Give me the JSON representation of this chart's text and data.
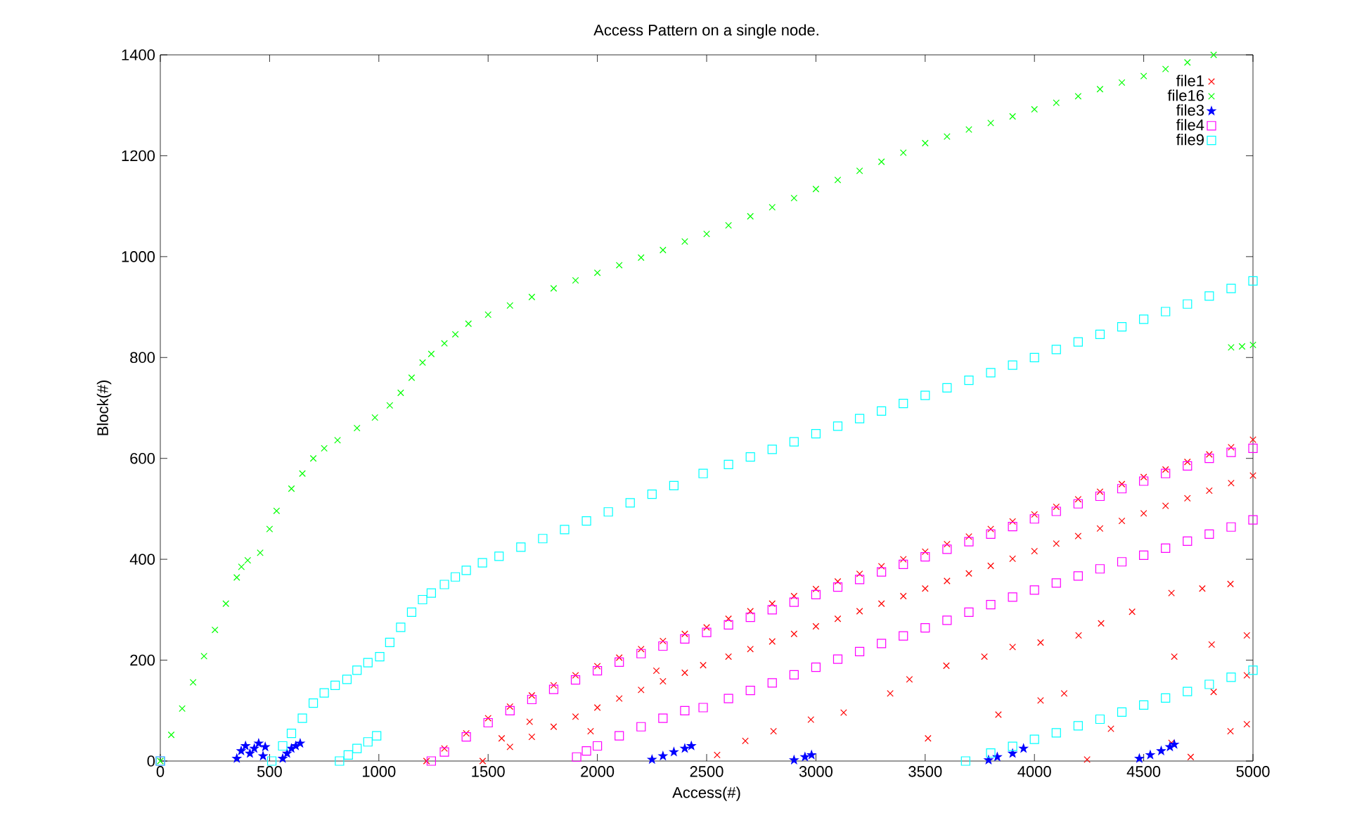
{
  "chart_data": {
    "type": "scatter",
    "title": "Access Pattern on a single node.",
    "xlabel": "Access(#)",
    "ylabel": "Block(#)",
    "xlim": [
      0,
      5000
    ],
    "ylim": [
      0,
      1400
    ],
    "xticks": [
      0,
      500,
      1000,
      1500,
      2000,
      2500,
      3000,
      3500,
      4000,
      4500,
      5000
    ],
    "yticks": [
      0,
      200,
      400,
      600,
      800,
      1000,
      1200,
      1400
    ],
    "grid": false,
    "legend": "top right",
    "series": [
      {
        "name": "file1",
        "color": "#ff0000",
        "marker": "cross",
        "x": [
          1218,
          1300,
          1400,
          1500,
          1600,
          1700,
          1800,
          1900,
          2000,
          2100,
          2200,
          2300,
          2400,
          2500,
          2600,
          2700,
          2800,
          2900,
          3000,
          3100,
          3200,
          3300,
          3400,
          3500,
          3600,
          3700,
          3800,
          3900,
          4000,
          4100,
          4200,
          4300,
          4400,
          4500,
          4600,
          4700,
          4800,
          4900,
          5000,
          1475,
          1600,
          1700,
          1800,
          1900,
          2000,
          2100,
          2200,
          2300,
          2400,
          2484,
          2600,
          2700,
          2800,
          2900,
          3000,
          3100,
          3200,
          3300,
          3400,
          3500,
          3600,
          3700,
          3800,
          3900,
          4000,
          4100,
          4200,
          4300,
          4400,
          4500,
          4600,
          4700,
          4800,
          4900,
          5000,
          4897,
          4768,
          4627,
          4447,
          4305,
          4202,
          4028,
          3900,
          3771,
          3597,
          3428,
          3340,
          3127,
          2977,
          2806,
          2677,
          2548,
          3513,
          3835,
          4028,
          4136,
          4640,
          4811,
          4972,
          4897,
          4972,
          4627,
          4350,
          4241,
          4715,
          4820,
          4972,
          1969,
          1690,
          1562,
          2270
        ],
        "values": [
          0,
          25,
          55,
          85,
          108,
          130,
          150,
          170,
          188,
          205,
          222,
          238,
          252,
          265,
          282,
          297,
          312,
          327,
          341,
          356,
          371,
          386,
          400,
          415,
          430,
          445,
          460,
          475,
          489,
          504,
          519,
          534,
          549,
          563,
          578,
          593,
          608,
          622,
          637,
          0,
          28,
          48,
          68,
          88,
          106,
          124,
          141,
          158,
          175,
          190,
          207,
          222,
          237,
          252,
          267,
          282,
          297,
          312,
          327,
          342,
          357,
          372,
          387,
          401,
          416,
          431,
          446,
          461,
          476,
          491,
          506,
          521,
          536,
          551,
          566,
          351,
          342,
          333,
          296,
          273,
          249,
          235,
          226,
          207,
          189,
          162,
          134,
          96,
          82,
          59,
          40,
          12,
          45,
          92,
          120,
          134,
          207,
          231,
          249,
          59,
          73,
          36,
          64,
          3,
          8,
          137,
          170,
          59,
          78,
          45,
          179
        ]
      },
      {
        "name": "file16",
        "color": "#00ff00",
        "marker": "cross",
        "x": [
          0,
          50,
          100,
          150,
          200,
          250,
          300,
          350,
          371,
          400,
          457,
          500,
          532,
          600,
          650,
          700,
          750,
          811,
          900,
          982,
          1050,
          1100,
          1150,
          1200,
          1240,
          1300,
          1350,
          1410,
          1500,
          1600,
          1700,
          1800,
          1900,
          2000,
          2100,
          2200,
          2300,
          2400,
          2500,
          2600,
          2700,
          2800,
          2900,
          3000,
          3100,
          3200,
          3300,
          3400,
          3500,
          3600,
          3700,
          3800,
          3900,
          4000,
          4100,
          4200,
          4300,
          4400,
          4500,
          4600,
          4700,
          4820,
          4900,
          4950,
          5000
        ],
        "values": [
          0,
          52,
          104,
          156,
          208,
          260,
          312,
          364,
          385,
          398,
          413,
          460,
          496,
          540,
          570,
          600,
          620,
          636,
          660,
          681,
          705,
          730,
          760,
          790,
          807,
          828,
          846,
          867,
          885,
          903,
          920,
          937,
          953,
          968,
          983,
          998,
          1013,
          1030,
          1045,
          1062,
          1080,
          1098,
          1116,
          1134,
          1152,
          1170,
          1188,
          1206,
          1225,
          1238,
          1252,
          1265,
          1278,
          1292,
          1305,
          1318,
          1332,
          1345,
          1358,
          1372,
          1385,
          1400,
          820,
          822,
          825
        ]
      },
      {
        "name": "file3",
        "color": "#0000ff",
        "marker": "star",
        "x": [
          350,
          370,
          390,
          410,
          430,
          450,
          470,
          480,
          560,
          580,
          600,
          620,
          640,
          2250,
          2300,
          2350,
          2400,
          2430,
          2900,
          2950,
          2980,
          3790,
          3830,
          3900,
          3950,
          4480,
          4530,
          4580,
          4620,
          4640
        ],
        "values": [
          5,
          20,
          30,
          15,
          25,
          35,
          10,
          28,
          5,
          15,
          25,
          30,
          35,
          3,
          10,
          18,
          25,
          30,
          2,
          8,
          12,
          2,
          8,
          15,
          25,
          5,
          12,
          20,
          28,
          33
        ]
      },
      {
        "name": "file4",
        "color": "#ff00ff",
        "marker": "square",
        "x": [
          0,
          1240,
          1300,
          1400,
          1500,
          1600,
          1700,
          1800,
          1900,
          2000,
          2100,
          2200,
          2300,
          2400,
          2500,
          2600,
          2700,
          2800,
          2900,
          3000,
          3100,
          3200,
          3300,
          3400,
          3500,
          3600,
          3700,
          3800,
          3900,
          4000,
          4100,
          4200,
          4300,
          4400,
          4500,
          4600,
          4700,
          4800,
          4900,
          5000,
          1905,
          1950,
          2000,
          2100,
          2200,
          2300,
          2400,
          2484,
          2600,
          2700,
          2800,
          2900,
          3000,
          3100,
          3200,
          3300,
          3400,
          3500,
          3600,
          3700,
          3800,
          3900,
          4000,
          4100,
          4200,
          4300,
          4400,
          4500,
          4600,
          4700,
          4800,
          4900,
          5000
        ],
        "values": [
          0,
          0,
          18,
          48,
          76,
          100,
          122,
          142,
          161,
          179,
          196,
          213,
          228,
          242,
          255,
          270,
          285,
          300,
          315,
          330,
          345,
          360,
          375,
          390,
          405,
          420,
          435,
          450,
          465,
          480,
          495,
          510,
          525,
          540,
          555,
          570,
          585,
          600,
          612,
          620,
          8,
          20,
          30,
          50,
          68,
          85,
          100,
          106,
          124,
          140,
          155,
          171,
          186,
          202,
          217,
          233,
          248,
          264,
          279,
          295,
          310,
          325,
          339,
          353,
          367,
          381,
          395,
          408,
          422,
          436,
          450,
          464,
          478
        ]
      },
      {
        "name": "file9",
        "color": "#00ffff",
        "marker": "square",
        "x": [
          0,
          510,
          560,
          600,
          650,
          700,
          750,
          800,
          854,
          900,
          950,
          1004,
          1050,
          1100,
          1150,
          1200,
          1240,
          1300,
          1350,
          1400,
          1474,
          1550,
          1650,
          1750,
          1850,
          1950,
          2050,
          2150,
          2250,
          2350,
          2484,
          2600,
          2700,
          2800,
          2900,
          3000,
          3100,
          3200,
          3300,
          3400,
          3500,
          3600,
          3700,
          3800,
          3900,
          4000,
          4100,
          4200,
          4300,
          4400,
          4500,
          4600,
          4700,
          4800,
          4900,
          5000,
          820,
          860,
          900,
          950,
          990,
          3685,
          3800,
          3900,
          4000,
          4100,
          4200,
          4300,
          4400,
          4500,
          4600,
          4700,
          4800,
          4900,
          5000
        ],
        "values": [
          0,
          0,
          30,
          55,
          85,
          115,
          135,
          150,
          162,
          180,
          195,
          207,
          235,
          265,
          295,
          320,
          333,
          350,
          365,
          378,
          393,
          406,
          424,
          441,
          459,
          476,
          494,
          512,
          529,
          546,
          570,
          588,
          603,
          618,
          633,
          649,
          664,
          679,
          694,
          709,
          725,
          740,
          755,
          770,
          785,
          800,
          816,
          831,
          846,
          861,
          876,
          891,
          906,
          922,
          937,
          952,
          0,
          12,
          25,
          38,
          50,
          0,
          16,
          29,
          43,
          56,
          70,
          83,
          97,
          111,
          125,
          138,
          152,
          166,
          180
        ]
      }
    ]
  }
}
